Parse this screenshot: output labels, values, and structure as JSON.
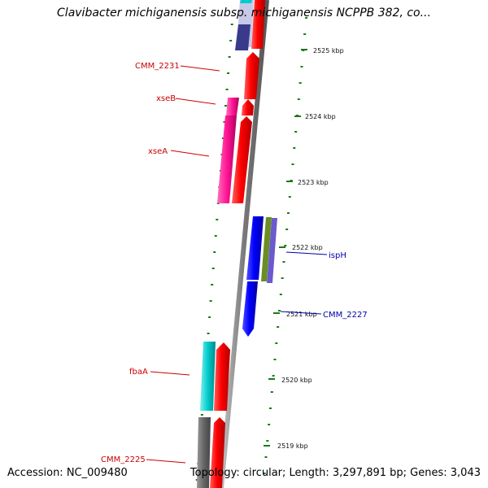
{
  "title": "Clavibacter michiganensis subsp. michiganensis NCPPB 382, co...",
  "footer": {
    "accession": "Accession: NC_009480",
    "summary": "Topology: circular; Length: 3,297,891 bp; Genes: 3,043"
  },
  "ticks": [
    "2525 kbp",
    "2524 kbp",
    "2523 kbp",
    "2522 kbp",
    "2521 kbp",
    "2520 kbp",
    "2519 kbp"
  ],
  "gene_labels": {
    "cmm2231": "CMM_2231",
    "xseB": "xseB",
    "xseA": "xseA",
    "ispH": "ispH",
    "cmm2227": "CMM_2227",
    "fbaA": "fbaA",
    "cmm2225": "CMM_2225"
  },
  "colors": {
    "red": "#ff0000",
    "blue": "#0000ff",
    "magenta": "#ff1493",
    "cyan": "#00cccc",
    "olive": "#6b8e23",
    "slate": "#6a5acd",
    "navy": "#3a3a8c",
    "grey": "#666666",
    "tick_green": "#1a7a1a",
    "label_red": "#cc0000",
    "label_blue": "#0000aa"
  }
}
